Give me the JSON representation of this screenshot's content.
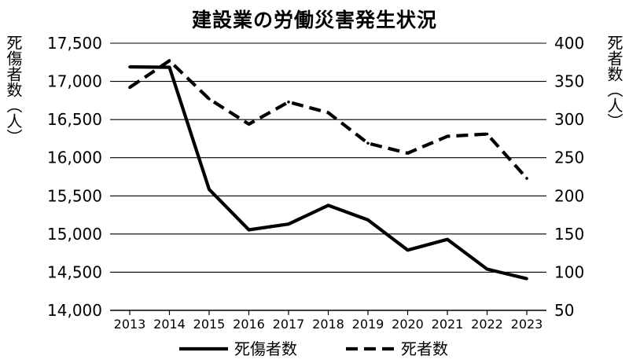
{
  "chart_data": {
    "type": "line",
    "title": "建設業の労働災害発生状況",
    "x": [
      "2013",
      "2014",
      "2015",
      "2016",
      "2017",
      "2018",
      "2019",
      "2020",
      "2021",
      "2022",
      "2023"
    ],
    "y_left": {
      "label": "死傷者数（人）",
      "lim": [
        14000,
        17500
      ],
      "ticks": [
        14000,
        14500,
        15000,
        15500,
        16000,
        16500,
        17000,
        17500
      ],
      "tick_labels": [
        "14,000",
        "14,500",
        "15,000",
        "15,500",
        "16,000",
        "16,500",
        "17,000",
        "17,500"
      ]
    },
    "y_right": {
      "label": "死者数（人）",
      "lim": [
        50,
        400
      ],
      "ticks": [
        50,
        100,
        150,
        200,
        250,
        300,
        350,
        400
      ],
      "tick_labels": [
        "50",
        "100",
        "150",
        "200",
        "250",
        "300",
        "350",
        "400"
      ]
    },
    "series": [
      {
        "name": "死傷者数",
        "axis": "left",
        "style": "solid",
        "color": "#000000",
        "values": [
          17190,
          17185,
          15585,
          15055,
          15130,
          15375,
          15185,
          14790,
          14930,
          14540,
          14415
        ]
      },
      {
        "name": "死者数",
        "axis": "right",
        "style": "dashed",
        "color": "#000000",
        "values": [
          342,
          377,
          327,
          294,
          323,
          309,
          269,
          256,
          278,
          281,
          223
        ]
      }
    ],
    "grid": true,
    "legend": "bottom"
  }
}
